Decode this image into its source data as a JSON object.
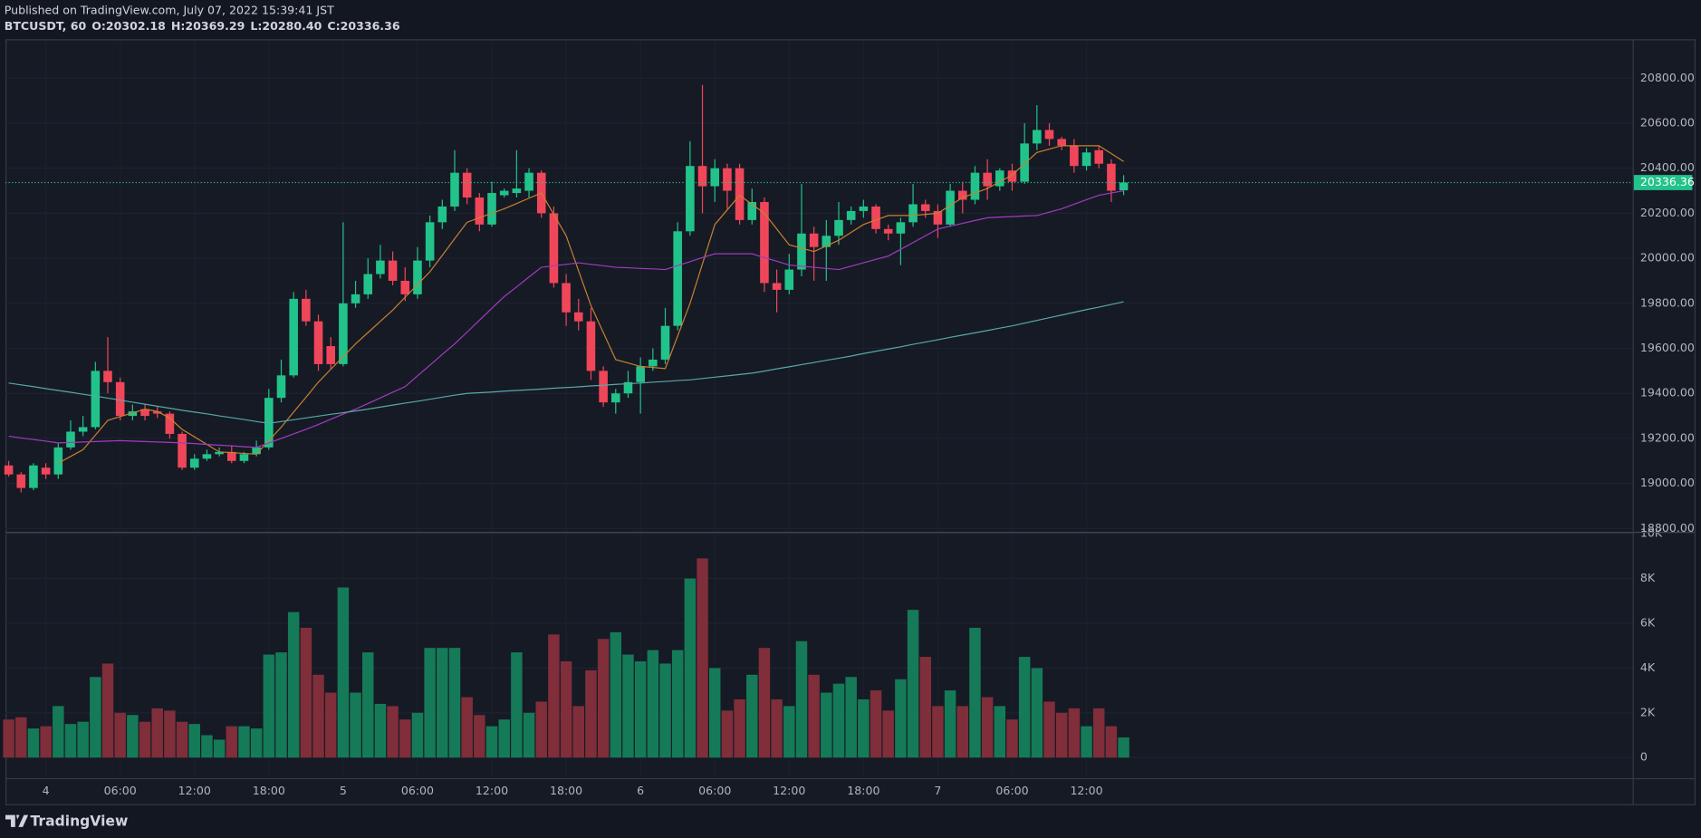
{
  "header": {
    "published": "Published on TradingView.com, July 07, 2022 15:39:41 JST",
    "symbol": "BTCUSDT, 60",
    "ohlc": [
      "O:20302.18",
      "H:20369.29",
      "L:20280.40",
      "C:20336.36"
    ]
  },
  "footer": {
    "brand": "TradingView"
  },
  "chart_data": [
    {
      "type": "candlestick",
      "categories": [
        null,
        null,
        null,
        "4",
        null,
        null,
        null,
        null,
        null,
        "06:00",
        null,
        null,
        null,
        null,
        null,
        "12:00",
        null,
        null,
        null,
        null,
        null,
        "18:00",
        null,
        null,
        null,
        null,
        null,
        "5",
        null,
        null,
        null,
        null,
        null,
        "06:00",
        null,
        null,
        null,
        null,
        null,
        "12:00",
        null,
        null,
        null,
        null,
        null,
        "18:00",
        null,
        null,
        null,
        null,
        null,
        "6",
        null,
        null,
        null,
        null,
        null,
        "06:00",
        null,
        null,
        null,
        null,
        null,
        "12:00",
        null,
        null,
        null,
        null,
        null,
        "18:00",
        null,
        null,
        null,
        null,
        null,
        "7",
        null,
        null,
        null,
        null,
        null,
        "06:00",
        null,
        null,
        null,
        null,
        null,
        "12:00",
        null,
        null,
        null
      ],
      "open": [
        19080,
        19040,
        18980,
        19070,
        19040,
        19160,
        19230,
        19250,
        19500,
        19450,
        19300,
        19330,
        19320,
        19310,
        19220,
        19070,
        19110,
        19130,
        19140,
        19100,
        19130,
        19160,
        19380,
        19480,
        19820,
        19720,
        19610,
        19530,
        19800,
        19840,
        19930,
        19990,
        19900,
        19840,
        19990,
        20160,
        20230,
        20380,
        20270,
        20150,
        20280,
        20290,
        20300,
        20380,
        20200,
        19890,
        19760,
        19720,
        19500,
        19360,
        19400,
        19450,
        19520,
        19550,
        19700,
        20120,
        20410,
        20320,
        20400,
        20400,
        20170,
        20250,
        19890,
        19860,
        19950,
        20110,
        20050,
        20100,
        20170,
        20210,
        20230,
        20130,
        20110,
        20160,
        20240,
        20210,
        20150,
        20300,
        20260,
        20380,
        20320,
        20390,
        20340,
        20510,
        20570,
        20530,
        20500,
        20410,
        20480,
        20420,
        20302.18
      ],
      "high": [
        19100,
        19050,
        19090,
        19090,
        19180,
        19280,
        19300,
        19540,
        19650,
        19470,
        19350,
        19350,
        19340,
        19320,
        19230,
        19130,
        19150,
        19160,
        19170,
        19140,
        19190,
        19420,
        19550,
        19850,
        19860,
        19750,
        19650,
        20160,
        19900,
        20000,
        20060,
        20030,
        19960,
        20050,
        20190,
        20260,
        20480,
        20400,
        20290,
        20340,
        20310,
        20480,
        20400,
        20390,
        20230,
        19930,
        19820,
        19780,
        19520,
        19420,
        19500,
        19560,
        19600,
        19780,
        20160,
        20520,
        20770,
        20440,
        20420,
        20420,
        20310,
        20270,
        19950,
        20020,
        20330,
        20140,
        20170,
        20250,
        20230,
        20260,
        20240,
        20150,
        20180,
        20330,
        20260,
        20240,
        20330,
        20340,
        20410,
        20440,
        20400,
        20420,
        20600,
        20680,
        20600,
        20540,
        20530,
        20490,
        20500,
        20440,
        20369.29
      ],
      "low": [
        19030,
        18960,
        18970,
        19020,
        19020,
        19150,
        19210,
        19240,
        19400,
        19280,
        19280,
        19280,
        19290,
        19200,
        19060,
        19060,
        19100,
        19120,
        19090,
        19090,
        19120,
        19150,
        19360,
        19470,
        19700,
        19500,
        19510,
        19520,
        19780,
        19820,
        19910,
        19880,
        19810,
        19820,
        19960,
        20130,
        20210,
        20240,
        20120,
        20140,
        20270,
        20270,
        20270,
        20180,
        19870,
        19700,
        19680,
        19460,
        19340,
        19310,
        19380,
        19310,
        19500,
        19530,
        19680,
        20100,
        20200,
        20250,
        20220,
        20150,
        20150,
        19850,
        19760,
        19840,
        19920,
        19900,
        19900,
        20060,
        20150,
        20180,
        20110,
        20080,
        19970,
        20140,
        20180,
        20090,
        20140,
        20200,
        20240,
        20260,
        20300,
        20300,
        20330,
        20480,
        20500,
        20480,
        20380,
        20390,
        20400,
        20250,
        20280.4
      ],
      "close": [
        19040,
        18980,
        19080,
        19040,
        19160,
        19230,
        19250,
        19500,
        19450,
        19300,
        19320,
        19300,
        19310,
        19220,
        19070,
        19110,
        19130,
        19140,
        19100,
        19130,
        19160,
        19380,
        19480,
        19820,
        19720,
        19530,
        19530,
        19800,
        19840,
        19930,
        19990,
        19900,
        19840,
        19990,
        20160,
        20230,
        20380,
        20270,
        20150,
        20290,
        20300,
        20310,
        20380,
        20200,
        19890,
        19760,
        19720,
        19500,
        19360,
        19400,
        19450,
        19520,
        19550,
        19700,
        20120,
        20410,
        20320,
        20400,
        20300,
        20170,
        20250,
        19890,
        19860,
        19950,
        20110,
        20050,
        20100,
        20170,
        20210,
        20230,
        20130,
        20110,
        20160,
        20240,
        20210,
        20150,
        20300,
        20260,
        20380,
        20320,
        20390,
        20340,
        20510,
        20570,
        20530,
        20500,
        20410,
        20470,
        20420,
        20300,
        20336.36
      ],
      "up_color": "#22c38a",
      "down_color": "#f0465a",
      "overlays": [
        {
          "color": "#c8812f",
          "values": [
            null,
            null,
            null,
            null,
            19090,
            19120,
            19150,
            19215,
            19280,
            19297,
            19313,
            19330,
            19320,
            19290,
            19240,
            19207,
            19173,
            19140,
            19137,
            19133,
            19130,
            19190,
            19250,
            19317,
            19383,
            19450,
            19507,
            19563,
            19620,
            19670,
            19720,
            19770,
            19827,
            19883,
            19940,
            20013,
            20087,
            20160,
            20180,
            20200,
            20220,
            20243,
            20267,
            20290,
            20195,
            20100,
            19945,
            19790,
            19670,
            19550,
            19535,
            19520,
            19515,
            19510,
            19655,
            19800,
            19975,
            20150,
            20215,
            20280,
            20240,
            20200,
            20130,
            20060,
            20045,
            20030,
            20055,
            20080,
            20115,
            20150,
            20170,
            20190,
            20190,
            20190,
            20195,
            20200,
            20235,
            20270,
            20290,
            20310,
            20340,
            20370,
            20420,
            20470,
            20485,
            20500,
            20500,
            20500,
            20500,
            20465,
            20430
          ]
        },
        {
          "color": "#a23bc0",
          "values": [
            19210,
            19202,
            19195,
            19188,
            19180,
            19182,
            19184,
            19186,
            19188,
            19190,
            19188,
            19186,
            19184,
            19182,
            19180,
            19177,
            19173,
            19170,
            19167,
            19163,
            19160,
            19180,
            19200,
            19220,
            19240,
            19262,
            19285,
            19308,
            19330,
            19355,
            19380,
            19405,
            19430,
            19478,
            19525,
            19573,
            19620,
            19672,
            19725,
            19778,
            19830,
            19873,
            19917,
            19960,
            19967,
            19973,
            19980,
            19973,
            19967,
            19960,
            19958,
            19955,
            19953,
            19950,
            19968,
            19985,
            20003,
            20020,
            20020,
            20020,
            20020,
            20003,
            19987,
            19970,
            19965,
            19960,
            19955,
            19950,
            19965,
            19980,
            19995,
            20010,
            20040,
            20070,
            20100,
            20130,
            20143,
            20155,
            20168,
            20180,
            20183,
            20185,
            20188,
            20190,
            20205,
            20220,
            20240,
            20260,
            20280,
            20290,
            20300
          ]
        },
        {
          "color": "#58a8a6",
          "values": [
            19446,
            19438,
            19430,
            19421,
            19413,
            19405,
            19396,
            19388,
            19379,
            19370,
            19361,
            19352,
            19343,
            19334,
            19325,
            19317,
            19309,
            19300,
            19292,
            19284,
            19275,
            19267,
            19275,
            19283,
            19291,
            19299,
            19307,
            19314,
            19322,
            19330,
            19339,
            19348,
            19357,
            19365,
            19374,
            19383,
            19392,
            19400,
            19403,
            19406,
            19410,
            19413,
            19416,
            19419,
            19423,
            19426,
            19429,
            19433,
            19436,
            19440,
            19443,
            19446,
            19450,
            19453,
            19457,
            19460,
            19466,
            19472,
            19478,
            19484,
            19490,
            19499,
            19509,
            19518,
            19528,
            19537,
            19547,
            19556,
            19566,
            19577,
            19587,
            19597,
            19607,
            19618,
            19628,
            19638,
            19649,
            19659,
            19669,
            19679,
            19690,
            19700,
            19712,
            19724,
            19736,
            19748,
            19760,
            19772,
            19783,
            19795,
            19807
          ]
        }
      ],
      "last_price": {
        "value": 20336.36,
        "label": "20336.36"
      },
      "ylim": [
        18785,
        20973
      ],
      "yticks": [
        {
          "value": 18800,
          "label": "18800.00"
        },
        {
          "value": 19000,
          "label": "19000.00"
        },
        {
          "value": 19200,
          "label": "19200.00"
        },
        {
          "value": 19400,
          "label": "19400.00"
        },
        {
          "value": 19600,
          "label": "19600.00"
        },
        {
          "value": 19800,
          "label": "19800.00"
        },
        {
          "value": 20000,
          "label": "20000.00"
        },
        {
          "value": 20200,
          "label": "20200.00"
        },
        {
          "value": 20400,
          "label": "20400.00"
        },
        {
          "value": 20600,
          "label": "20600.00"
        },
        {
          "value": 20800,
          "label": "20800.00"
        }
      ],
      "grid": true
    },
    {
      "type": "bar",
      "values": [
        1700,
        1800,
        1300,
        1400,
        2300,
        1500,
        1600,
        3600,
        4200,
        2000,
        1900,
        1600,
        2200,
        2100,
        1600,
        1500,
        1000,
        800,
        1400,
        1400,
        1300,
        4600,
        4700,
        6500,
        5800,
        3700,
        2900,
        7600,
        2900,
        4700,
        2400,
        2300,
        1700,
        2000,
        4900,
        4900,
        4900,
        2700,
        1900,
        1400,
        1700,
        4700,
        2000,
        2500,
        5500,
        4300,
        2300,
        3900,
        5300,
        5600,
        4600,
        4300,
        4800,
        4200,
        4800,
        8000,
        8900,
        4000,
        2100,
        2600,
        3700,
        4900,
        2600,
        2300,
        5200,
        3700,
        2900,
        3300,
        3600,
        2600,
        3000,
        2100,
        3500,
        6600,
        4500,
        2300,
        3000,
        2300,
        5800,
        2700,
        2300,
        1700,
        4500,
        4000,
        2500,
        2000,
        2200,
        1400,
        2200,
        1400,
        900
      ],
      "up_color": "#157a58",
      "down_color": "#7f2e3a",
      "ylim": [
        -920,
        10085
      ],
      "yticks": [
        0,
        {
          "value": 2000,
          "label": "2K"
        },
        {
          "value": 4000,
          "label": "4K"
        },
        {
          "value": 6000,
          "label": "6K"
        },
        {
          "value": 8000,
          "label": "8K"
        },
        {
          "value": 10000,
          "label": "10K"
        }
      ],
      "grid": true
    }
  ]
}
